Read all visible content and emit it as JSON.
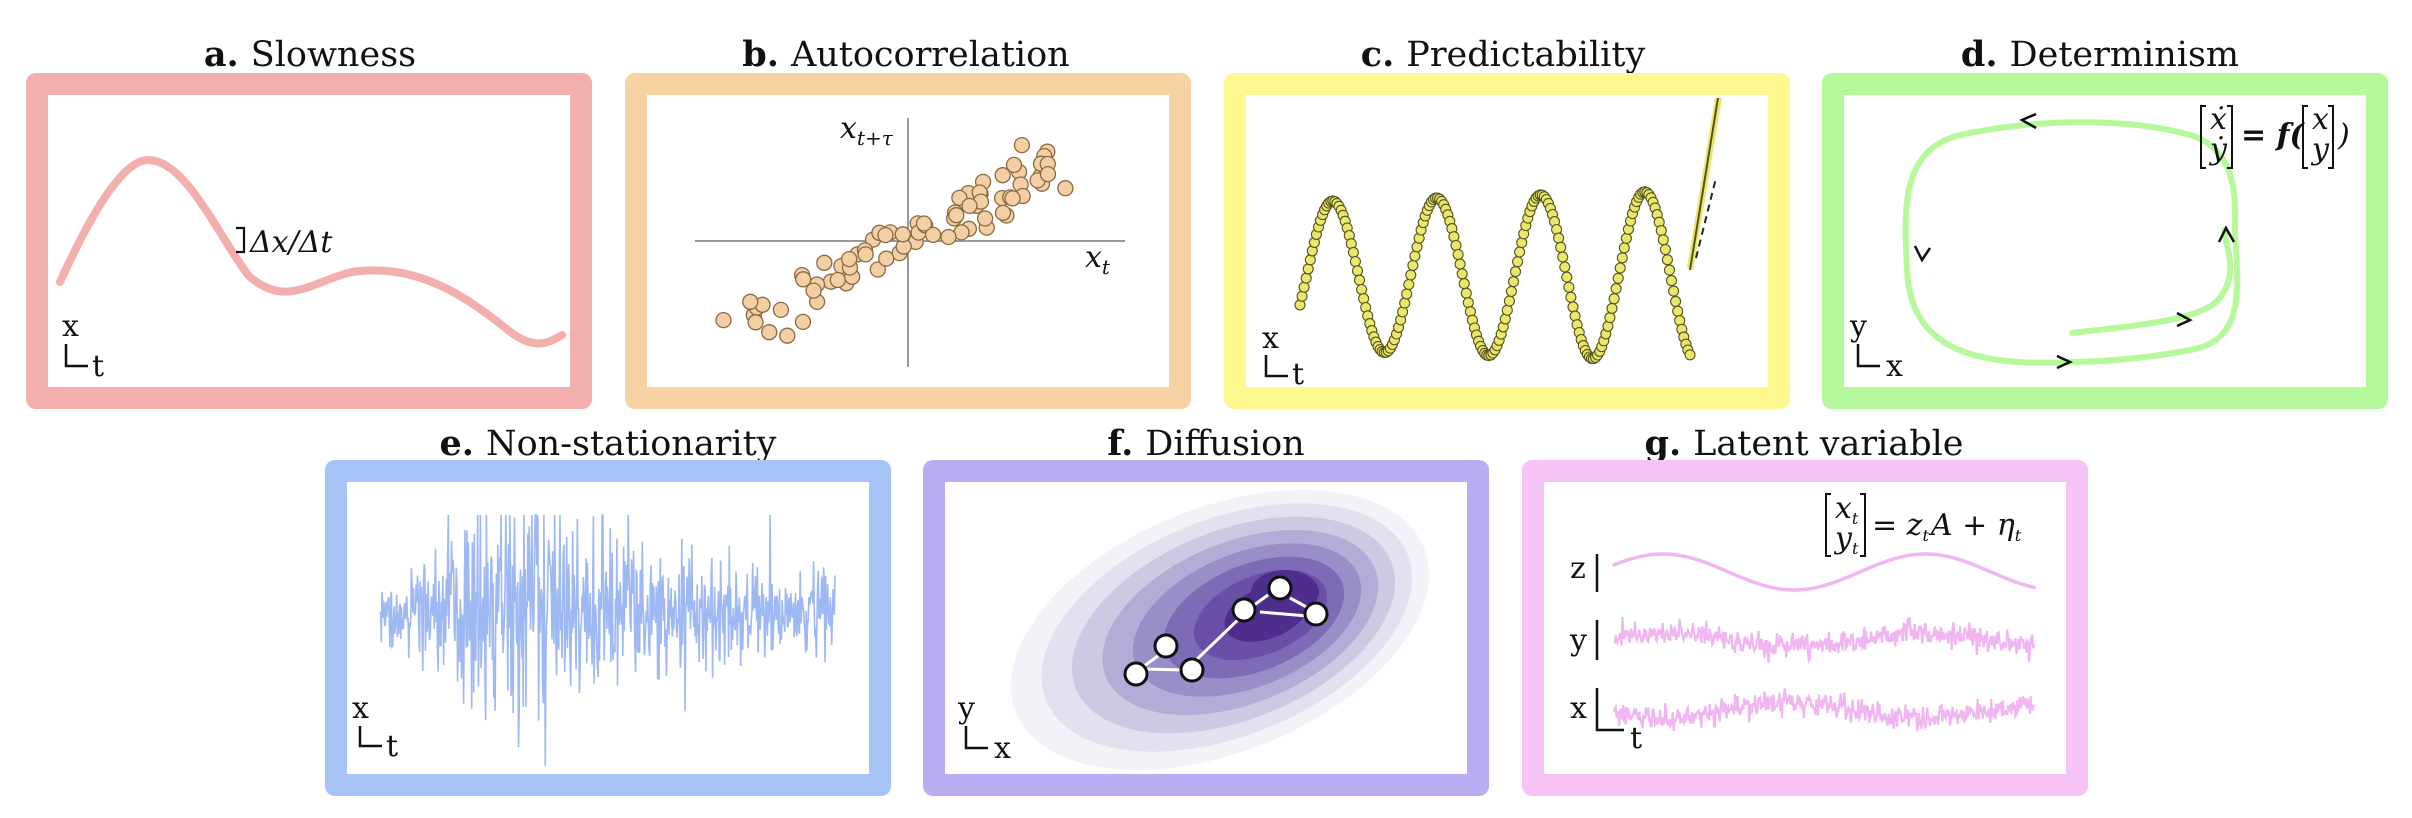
{
  "colors": {
    "slowness": "#f2afad",
    "autocorrelation": "#f7d3a4",
    "predictability": "#fcf78e",
    "determinism": "#b6f99c",
    "nonstationarity": "#a6c3f8",
    "diffusion": "#b9aef4",
    "latent": "#f6c3f6",
    "dot_fill": "#f4cfa5",
    "dot_stroke": "#8a6a40",
    "pred_fill": "#ebe76b",
    "pred_stroke": "#55531d",
    "det_line": "#b6f99c",
    "noise_line": "#9db8f3",
    "latent_line": "#f0b6f2",
    "diffusion_levels": [
      "#f3f2f8",
      "#e3e1ef",
      "#cdc9e3",
      "#b4abd6",
      "#9a8ec8",
      "#7d6bb6",
      "#6a4fa8",
      "#4e2d8c"
    ]
  },
  "panels": [
    {
      "letter": "a.",
      "name": "Slowness"
    },
    {
      "letter": "b.",
      "name": "Autocorrelation"
    },
    {
      "letter": "c.",
      "name": "Predictability"
    },
    {
      "letter": "d.",
      "name": "Determinism"
    },
    {
      "letter": "e.",
      "name": "Non-stationarity"
    },
    {
      "letter": "f.",
      "name": "Diffusion"
    },
    {
      "letter": "g.",
      "name": "Latent variable"
    }
  ],
  "labels": {
    "a_axis_y": "x",
    "a_axis_x": "t",
    "a_annot": "Δx/Δt",
    "b_axis_y": "x",
    "b_axis_y_sub": "t+τ",
    "b_axis_x": "x",
    "b_axis_x_sub": "t",
    "c_axis_y": "x",
    "c_axis_x": "t",
    "d_axis_y": "y",
    "d_axis_x": "x",
    "d_eq_lhs_top": "ẋ",
    "d_eq_lhs_bot": "ẏ",
    "d_eq_mid": "= f(",
    "d_eq_rhs_top": "x",
    "d_eq_rhs_bot": "y",
    "d_eq_end": ")",
    "e_axis_y": "x",
    "e_axis_x": "t",
    "f_axis_y": "y",
    "f_axis_x": "x",
    "g_eq_top": "x",
    "g_eq_top_sub": "t",
    "g_eq_bot": "y",
    "g_eq_bot_sub": "t",
    "g_eq_rhs": "= z",
    "g_eq_rhs_sub": "t",
    "g_eq_rhs2": "A + η",
    "g_eq_rhs2_sub": "t",
    "g_row_z": "z",
    "g_row_y": "y",
    "g_row_x": "x",
    "g_axis_t": "t"
  }
}
